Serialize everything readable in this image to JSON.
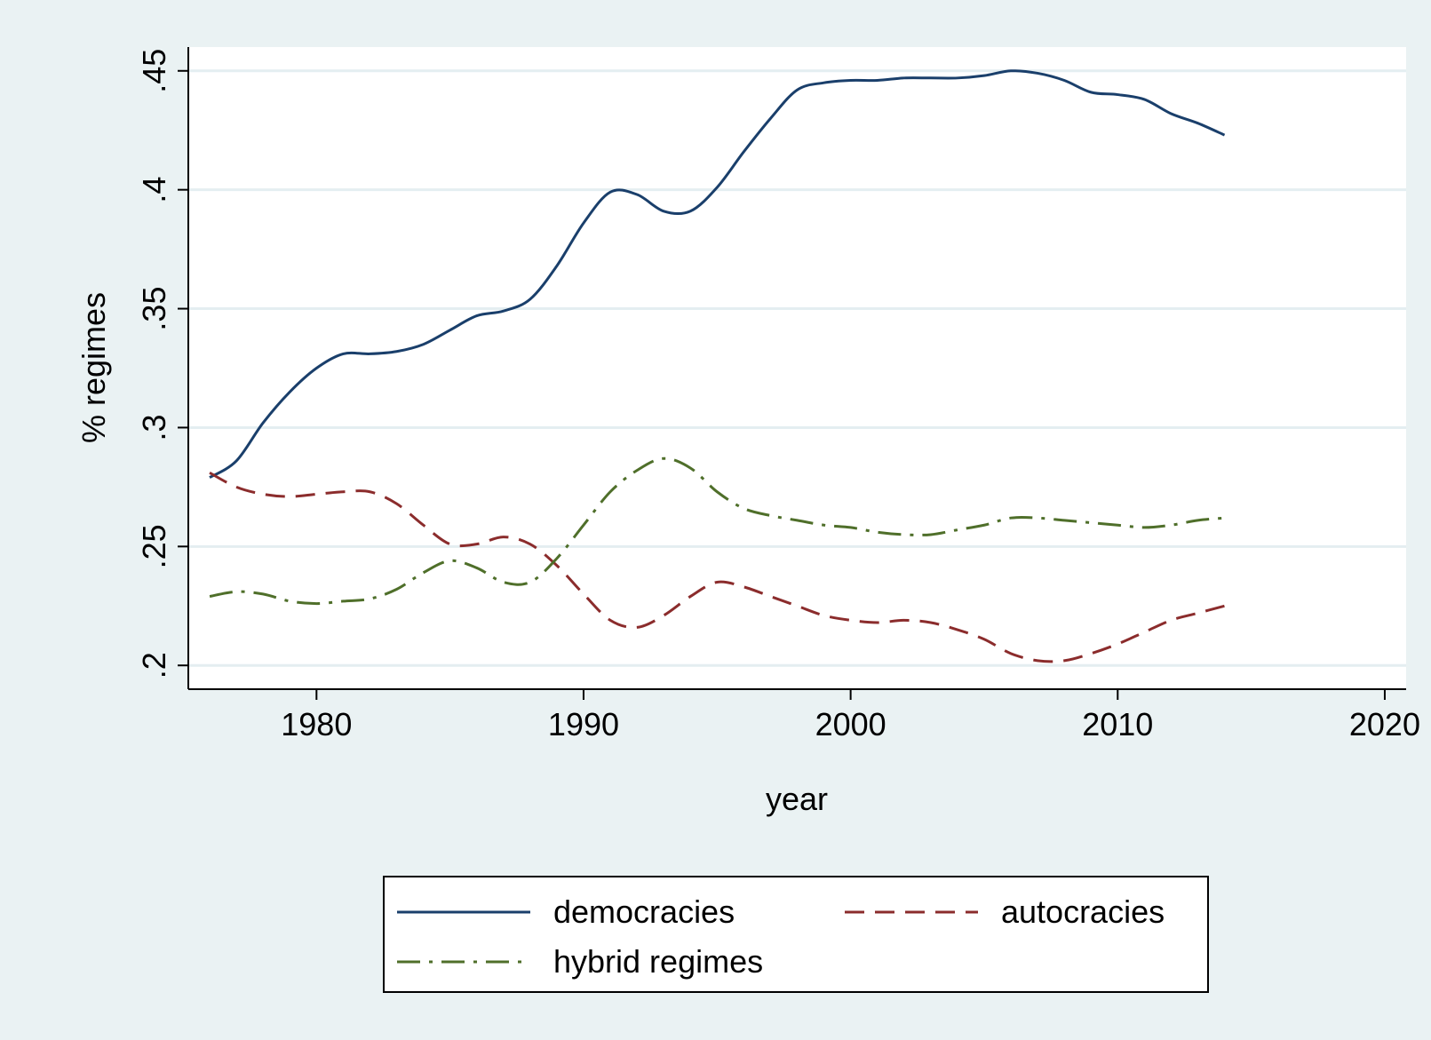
{
  "chart_data": {
    "type": "line",
    "xlabel": "year",
    "ylabel": "% regimes",
    "xlim": [
      1975.2,
      2020.8
    ],
    "ylim": [
      0.19,
      0.46
    ],
    "xticks": [
      1980,
      1990,
      2000,
      2010,
      2020
    ],
    "xtick_labels": [
      "1980",
      "1990",
      "2000",
      "2010",
      "2020"
    ],
    "yticks": [
      0.2,
      0.25,
      0.3,
      0.35,
      0.4,
      0.45
    ],
    "ytick_labels": [
      ".2",
      ".25",
      ".3",
      ".35",
      ".4",
      ".45"
    ],
    "grid": true,
    "legend_position": "bottom",
    "background_color": "#eaf2f3",
    "plot_background_color": "#ffffff",
    "series": [
      {
        "name": "democracies",
        "color": "#1a3f6b",
        "style": "solid",
        "x": [
          1976,
          1977,
          1978,
          1979,
          1980,
          1981,
          1982,
          1983,
          1984,
          1985,
          1986,
          1987,
          1988,
          1989,
          1990,
          1991,
          1992,
          1993,
          1994,
          1995,
          1996,
          1997,
          1998,
          1999,
          2000,
          2001,
          2002,
          2003,
          2004,
          2005,
          2006,
          2007,
          2008,
          2009,
          2010,
          2011,
          2012,
          2013,
          2014
        ],
        "y": [
          0.279,
          0.286,
          0.302,
          0.315,
          0.325,
          0.331,
          0.331,
          0.332,
          0.335,
          0.341,
          0.347,
          0.349,
          0.354,
          0.368,
          0.386,
          0.399,
          0.398,
          0.391,
          0.391,
          0.401,
          0.416,
          0.43,
          0.442,
          0.445,
          0.446,
          0.446,
          0.447,
          0.447,
          0.447,
          0.448,
          0.45,
          0.449,
          0.446,
          0.441,
          0.44,
          0.438,
          0.432,
          0.428,
          0.423
        ]
      },
      {
        "name": "autocracies",
        "color": "#8b2c2c",
        "style": "dash",
        "x": [
          1976,
          1977,
          1978,
          1979,
          1980,
          1981,
          1982,
          1983,
          1984,
          1985,
          1986,
          1987,
          1988,
          1989,
          1990,
          1991,
          1992,
          1993,
          1994,
          1995,
          1996,
          1997,
          1998,
          1999,
          2000,
          2001,
          2002,
          2003,
          2004,
          2005,
          2006,
          2007,
          2008,
          2009,
          2010,
          2011,
          2012,
          2013,
          2014
        ],
        "y": [
          0.281,
          0.275,
          0.272,
          0.271,
          0.272,
          0.273,
          0.273,
          0.268,
          0.259,
          0.251,
          0.251,
          0.254,
          0.251,
          0.242,
          0.23,
          0.219,
          0.216,
          0.221,
          0.229,
          0.235,
          0.233,
          0.229,
          0.225,
          0.221,
          0.219,
          0.218,
          0.219,
          0.218,
          0.215,
          0.211,
          0.205,
          0.202,
          0.202,
          0.205,
          0.209,
          0.214,
          0.219,
          0.222,
          0.225
        ]
      },
      {
        "name": "hybrid regimes",
        "color": "#4f6f2a",
        "style": "dashdot",
        "x": [
          1976,
          1977,
          1978,
          1979,
          1980,
          1981,
          1982,
          1983,
          1984,
          1985,
          1986,
          1987,
          1988,
          1989,
          1990,
          1991,
          1992,
          1993,
          1994,
          1995,
          1996,
          1997,
          1998,
          1999,
          2000,
          2001,
          2002,
          2003,
          2004,
          2005,
          2006,
          2007,
          2008,
          2009,
          2010,
          2011,
          2012,
          2013,
          2014
        ],
        "y": [
          0.229,
          0.231,
          0.23,
          0.227,
          0.226,
          0.227,
          0.228,
          0.232,
          0.239,
          0.244,
          0.241,
          0.235,
          0.235,
          0.245,
          0.259,
          0.273,
          0.282,
          0.287,
          0.283,
          0.273,
          0.266,
          0.263,
          0.261,
          0.259,
          0.258,
          0.256,
          0.255,
          0.255,
          0.257,
          0.259,
          0.262,
          0.262,
          0.261,
          0.26,
          0.259,
          0.258,
          0.259,
          0.261,
          0.262
        ]
      }
    ]
  }
}
